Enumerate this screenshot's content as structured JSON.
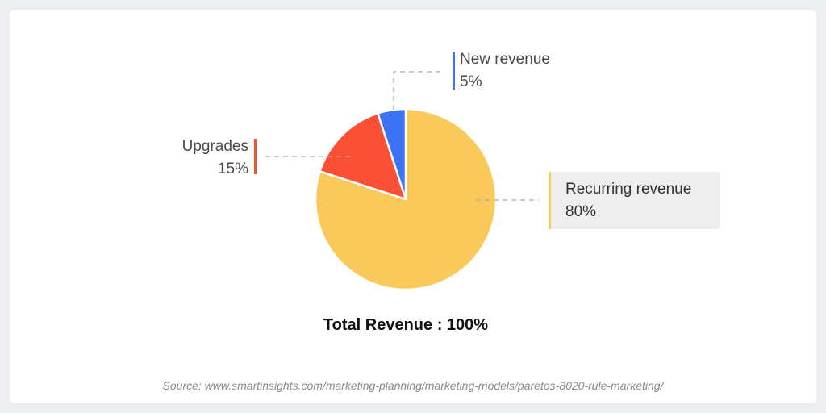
{
  "chart_data": {
    "type": "pie",
    "slices": [
      {
        "label": "Recurring revenue",
        "value": 80,
        "value_label": "80%",
        "color": "#f9ca5a"
      },
      {
        "label": "Upgrades",
        "value": 15,
        "value_label": "15%",
        "color": "#fb5036"
      },
      {
        "label": "New revenue",
        "value": 5,
        "value_label": "5%",
        "color": "#3c73f5"
      }
    ],
    "start_angle_deg": 0,
    "direction": "clockwise",
    "total_label": "Total Revenue : 100%"
  },
  "source": "Source: www.smartinsights.com/marketing-planning/marketing-models/paretos-8020-rule-marketing/"
}
